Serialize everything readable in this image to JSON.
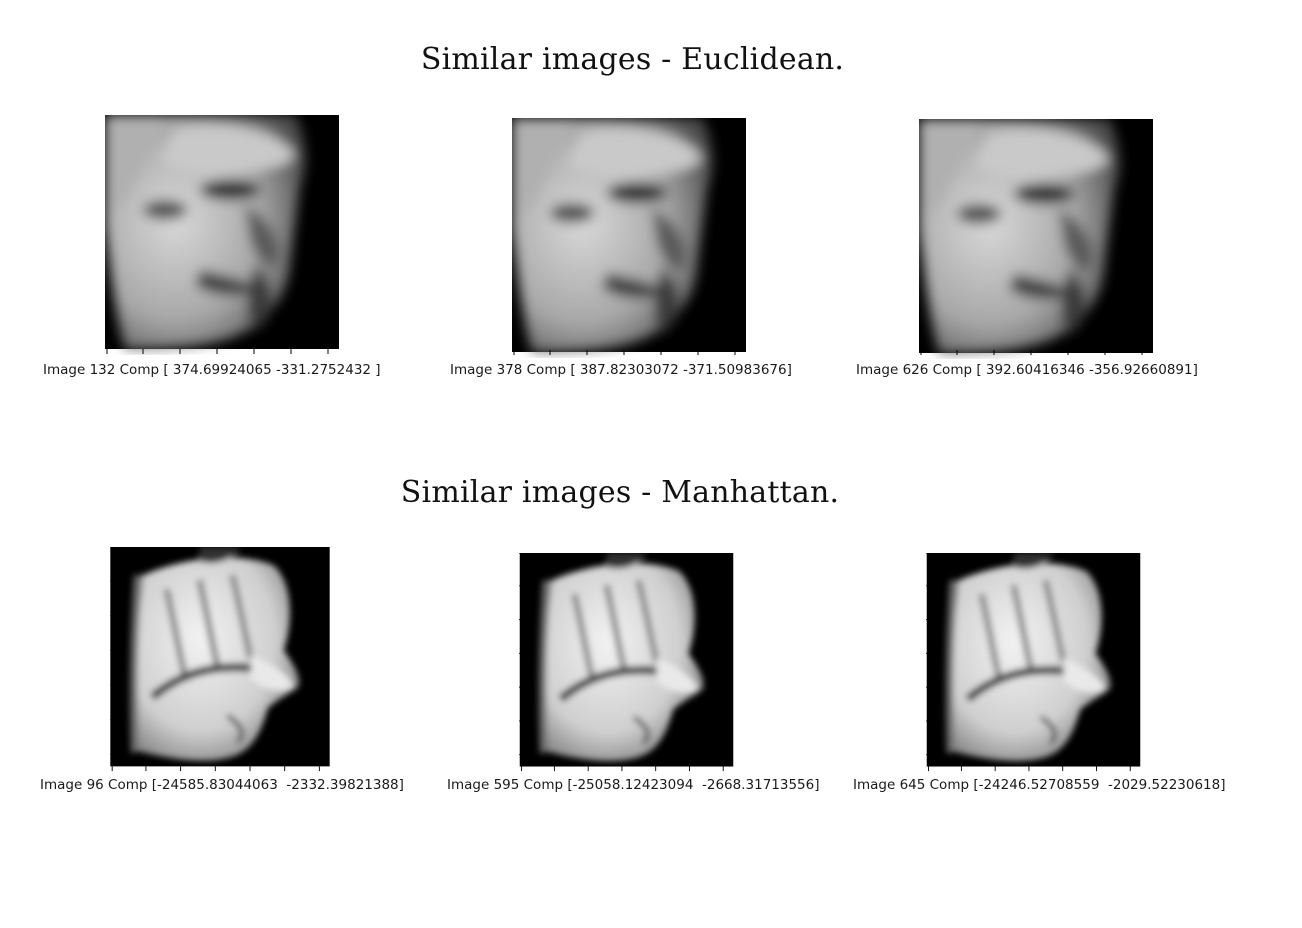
{
  "sections": [
    {
      "title": "Similar images - Euclidean.",
      "images": [
        {
          "caption": "Image 132 Comp [ 374.69924065 -331.2752432 ]",
          "subject": "face-rendering-looking-right"
        },
        {
          "caption": "Image 378 Comp [ 387.82303072 -371.50983676]",
          "subject": "face-rendering-looking-right"
        },
        {
          "caption": "Image 626 Comp [ 392.60416346 -356.92660891]",
          "subject": "face-rendering-looking-right"
        }
      ]
    },
    {
      "title": "Similar images - Manhattan.",
      "images": [
        {
          "caption": "Image 96 Comp [-24585.83044063  -2332.39821388]",
          "subject": "face-rendering-profile-right"
        },
        {
          "caption": "Image 595 Comp [-25058.12423094  -2668.31713556]",
          "subject": "face-rendering-profile-right"
        },
        {
          "caption": "Image 645 Comp [-24246.52708559  -2029.52230618]",
          "subject": "face-rendering-profile-right"
        }
      ]
    }
  ]
}
